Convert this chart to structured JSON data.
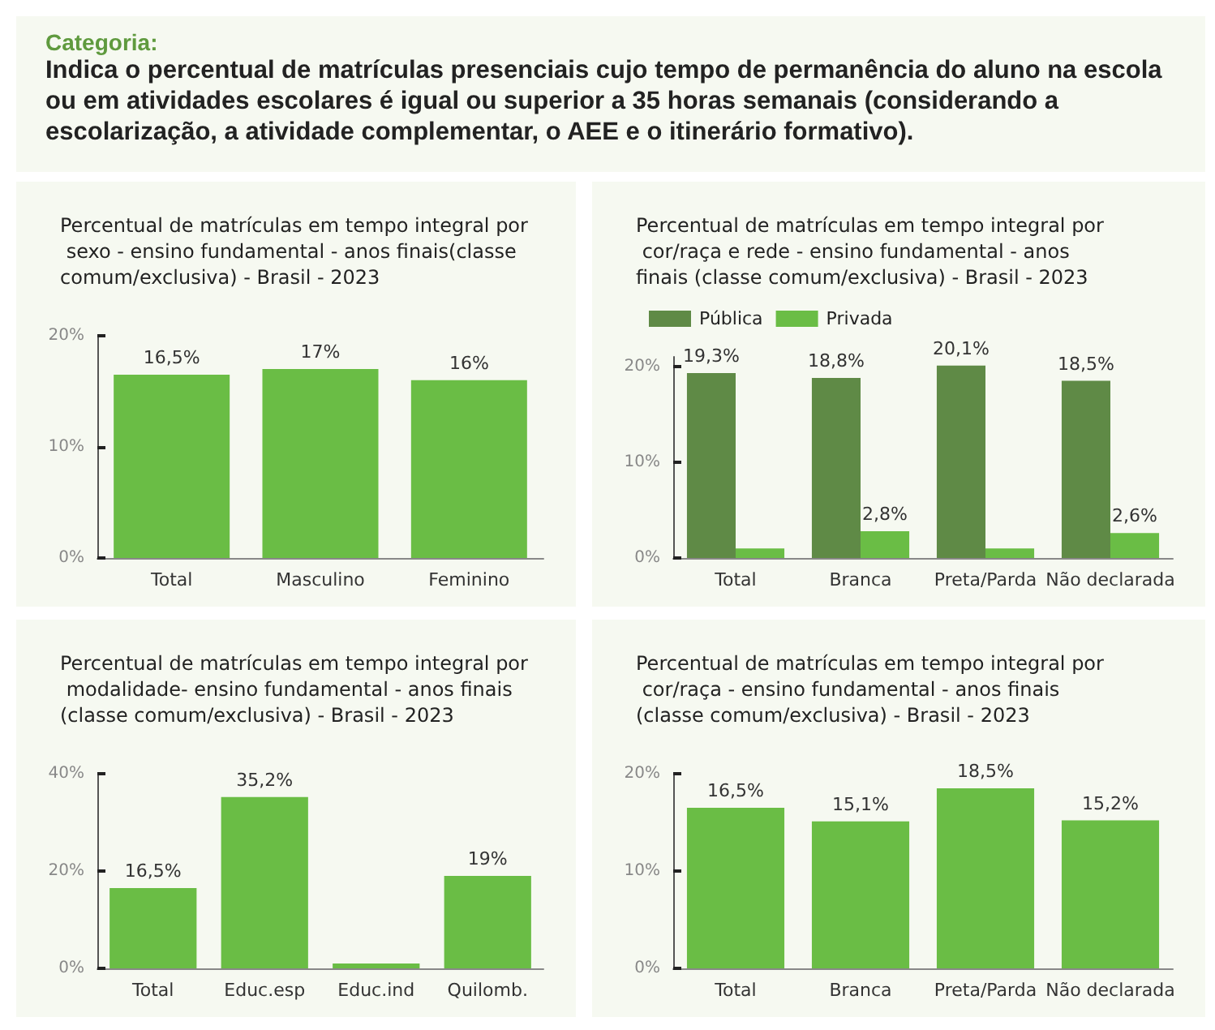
{
  "chart_data": [
    {
      "type": "other",
      "title": "Categoria:",
      "subtitle": "Indica o percentual de matrículas presenciais cujo tempo de permanência do aluno na escola ou em atividades escolares é igual ou superior a 35 horas semanais (considerando a escolarização, a atividade complementar, o AEE e o itinerário formativo)."
    },
    {
      "type": "bar",
      "title": "Percentual de matrículas em tempo integral por sexo - ensino fundamental - anos finais(classe comum/exclusiva) - Brasil - 2023",
      "categories": [
        "Total",
        "Masculino",
        "Feminino"
      ],
      "values": [
        16.5,
        17,
        16
      ],
      "color": "#6abd45",
      "value_labels": [
        "16,5%",
        "17%",
        "16%"
      ],
      "ylim": [
        0,
        20
      ],
      "yticks": [
        {
          "value": 0,
          "label": "0%"
        },
        {
          "value": 10,
          "label": "10%"
        },
        {
          "value": 20,
          "label": "20%"
        }
      ]
    },
    {
      "type": "bar",
      "title": "Percentual de matrículas em tempo integral por cor/raça e rede - ensino fundamental - anos finais (classe comum/exclusiva) - Brasil - 2023",
      "categories": [
        "Total",
        "Branca",
        "Preta/Parda",
        "Não declarada"
      ],
      "series": [
        {
          "name": "Pública",
          "color": "#5f8a46",
          "values": [
            19.3,
            18.8,
            20.1,
            18.5
          ],
          "value_labels": [
            "19,3%",
            "18,8%",
            "20,1%",
            "18,5%"
          ]
        },
        {
          "name": "Privada",
          "color": "#6abd45",
          "values": [
            1.0,
            2.8,
            1.0,
            2.6
          ],
          "value_labels": [
            null,
            "2,8%",
            null,
            "2,6%"
          ]
        }
      ],
      "legend": "top left",
      "ylim": [
        0,
        21
      ],
      "yticks": [
        {
          "value": 0,
          "label": "0%"
        },
        {
          "value": 10,
          "label": "10%"
        },
        {
          "value": 20,
          "label": "20%"
        }
      ]
    },
    {
      "type": "bar",
      "title": "Percentual de matrículas em tempo integral por modalidade- ensino fundamental - anos finais (classe comum/exclusiva) - Brasil - 2023",
      "categories": [
        "Total",
        "Educ.esp",
        "Educ.ind",
        "Quilomb."
      ],
      "values": [
        16.5,
        35.2,
        1.0,
        19
      ],
      "color": "#6abd45",
      "value_labels": [
        "16,5%",
        "35,2%",
        null,
        "19%"
      ],
      "ylim": [
        0,
        40
      ],
      "yticks": [
        {
          "value": 0,
          "label": "0%"
        },
        {
          "value": 20,
          "label": "20%"
        },
        {
          "value": 40,
          "label": "40%"
        }
      ]
    },
    {
      "type": "bar",
      "title": "Percentual de matrículas em tempo integral por cor/raça - ensino fundamental - anos finais (classe comum/exclusiva) - Brasil - 2023",
      "categories": [
        "Total",
        "Branca",
        "Preta/Parda",
        "Não declarada"
      ],
      "values": [
        16.5,
        15.1,
        18.5,
        15.2
      ],
      "color": "#6abd45",
      "value_labels": [
        "16,5%",
        "15,1%",
        "18,5%",
        "15,2%"
      ],
      "ylim": [
        0,
        20
      ],
      "yticks": [
        {
          "value": 0,
          "label": "0%"
        },
        {
          "value": 10,
          "label": "10%"
        },
        {
          "value": 20,
          "label": "20%"
        }
      ]
    }
  ]
}
